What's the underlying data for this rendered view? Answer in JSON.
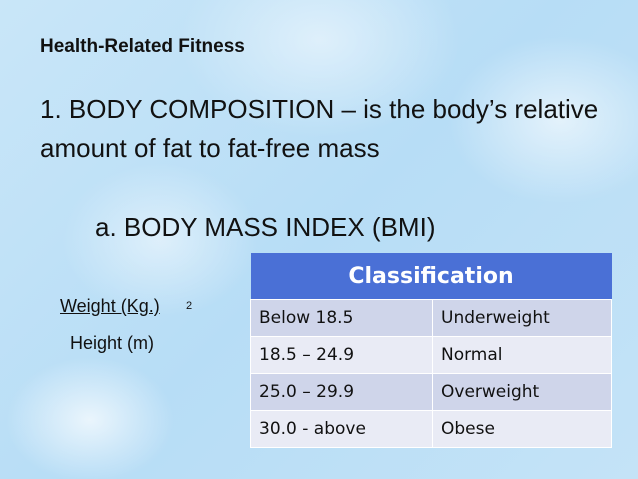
{
  "header": {
    "title": "Health-Related Fitness"
  },
  "body": {
    "point": "1. BODY COMPOSITION – is the body’s relative amount of fat to fat-free mass",
    "subpoint": "a. BODY MASS INDEX (BMI)"
  },
  "formula": {
    "numerator": "Weight (Kg.)",
    "exponent": "2",
    "denominator": "Height (m)"
  },
  "table": {
    "header": "Classification",
    "rows": [
      [
        "Below 18.5",
        "Underweight"
      ],
      [
        "18.5 – 24.9",
        "Normal"
      ],
      [
        "25.0 – 29.9",
        "Overweight"
      ],
      [
        "30.0 - above",
        "Obese"
      ]
    ]
  }
}
